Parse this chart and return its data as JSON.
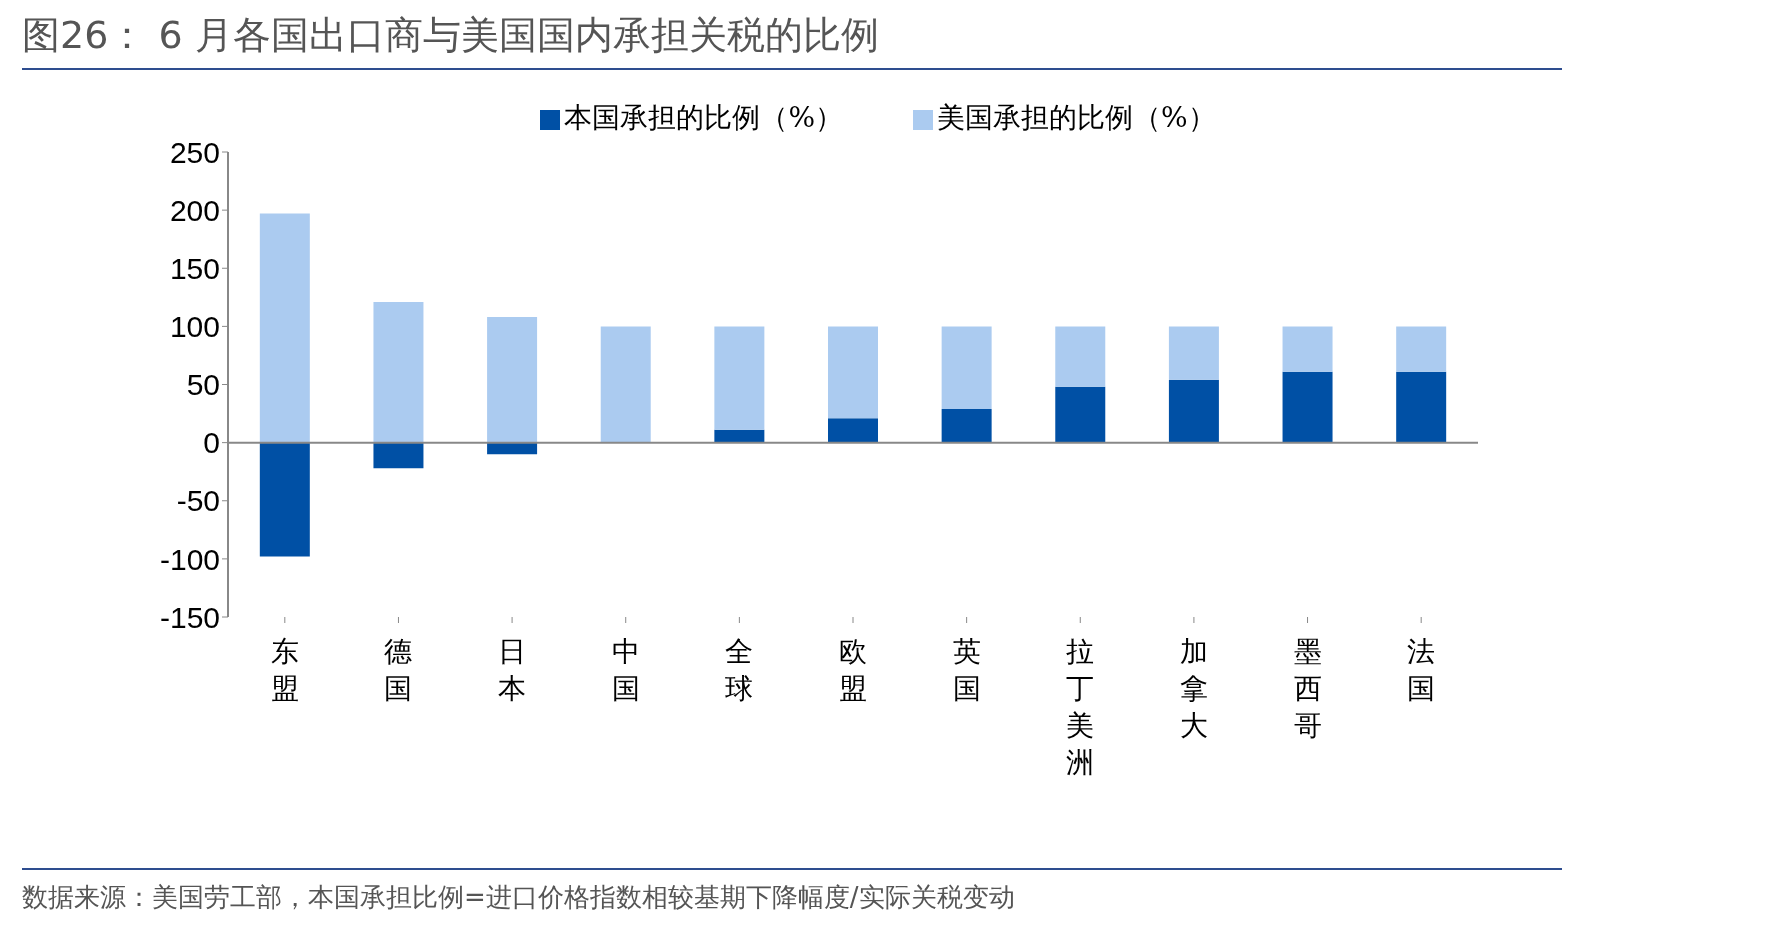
{
  "chart_data": {
    "type": "bar",
    "title": "图26：  6 月各国出口商与美国国内承担关税的比例",
    "categories": [
      "东盟",
      "德国",
      "日本",
      "中国",
      "全球",
      "欧盟",
      "英国",
      "拉丁美洲",
      "加拿大",
      "墨西哥",
      "法国"
    ],
    "stacked": true,
    "series": [
      {
        "name": "本国承担的比例（%）",
        "color": "#0050a5",
        "values": [
          -98,
          -22,
          -10,
          0,
          11,
          21,
          29,
          48,
          54,
          61,
          61
        ]
      },
      {
        "name": "美国承担的比例（%）",
        "color": "#abcbf0",
        "values": [
          197,
          121,
          108,
          100,
          89,
          79,
          71,
          52,
          46,
          39,
          39
        ]
      }
    ],
    "ylim": [
      -150,
      250
    ],
    "yticks": [
      -150,
      -100,
      -50,
      0,
      50,
      100,
      150,
      200,
      250
    ],
    "ref_lines": [
      {
        "axis": "y",
        "value": 0,
        "color": "#888888"
      }
    ],
    "legend": "top",
    "annotations": [
      "数据来源：美国劳工部，本国承担比例=进口价格指数相较基期下降幅度/实际关税变动"
    ]
  }
}
